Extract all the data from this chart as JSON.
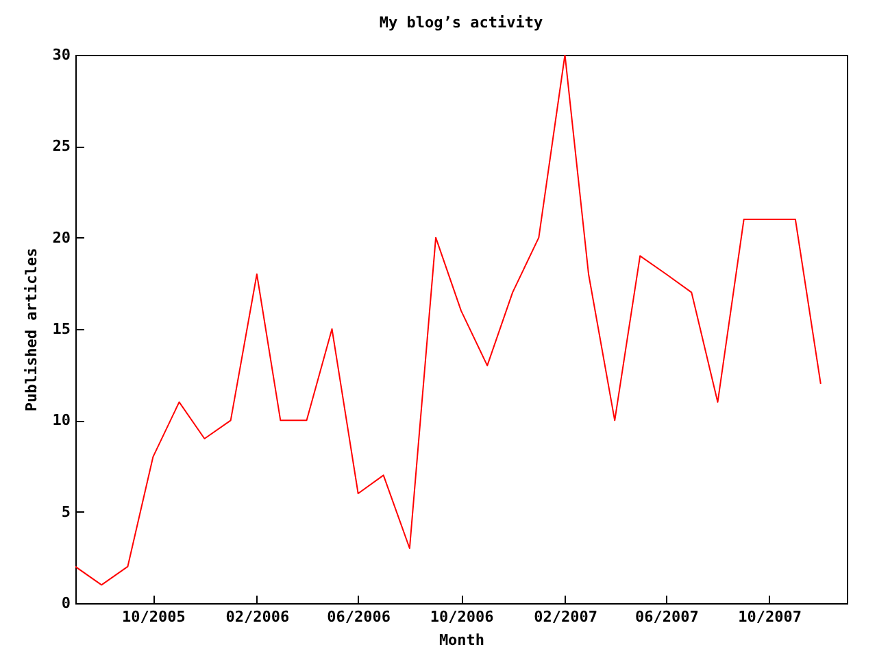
{
  "chart_data": {
    "type": "line",
    "title": "My blog’s activity",
    "xlabel": "Month",
    "ylabel": "Published articles",
    "x": [
      "2005-07",
      "2005-08",
      "2005-09",
      "2005-10",
      "2005-11",
      "2005-12",
      "2006-01",
      "2006-02",
      "2006-03",
      "2006-04",
      "2006-05",
      "2006-06",
      "2006-07",
      "2006-08",
      "2006-09",
      "2006-10",
      "2006-11",
      "2006-12",
      "2007-01",
      "2007-02",
      "2007-03",
      "2007-04",
      "2007-05",
      "2007-06",
      "2007-07",
      "2007-08",
      "2007-09",
      "2007-10",
      "2007-11",
      "2007-12"
    ],
    "series": [
      {
        "color": "#ff0000",
        "values": [
          2,
          1,
          2,
          8,
          11,
          9,
          10,
          18,
          10,
          10,
          15,
          6,
          7,
          3,
          20,
          16,
          13,
          17,
          20,
          30,
          18,
          10,
          19,
          18,
          17,
          11,
          21,
          21,
          21,
          12
        ]
      }
    ],
    "xlim": [
      "2005-07",
      "2008-01"
    ],
    "xticks": [
      {
        "value": "2005-10",
        "label": "10/2005"
      },
      {
        "value": "2006-02",
        "label": "02/2006"
      },
      {
        "value": "2006-06",
        "label": "06/2006"
      },
      {
        "value": "2006-10",
        "label": "10/2006"
      },
      {
        "value": "2007-02",
        "label": "02/2007"
      },
      {
        "value": "2007-06",
        "label": "06/2007"
      },
      {
        "value": "2007-10",
        "label": "10/2007"
      }
    ],
    "ylim": [
      0,
      30
    ],
    "yticks": [
      0,
      5,
      10,
      15,
      20,
      25,
      30
    ],
    "grid": false,
    "legend": false,
    "line_style": "solid",
    "marker": "none"
  }
}
